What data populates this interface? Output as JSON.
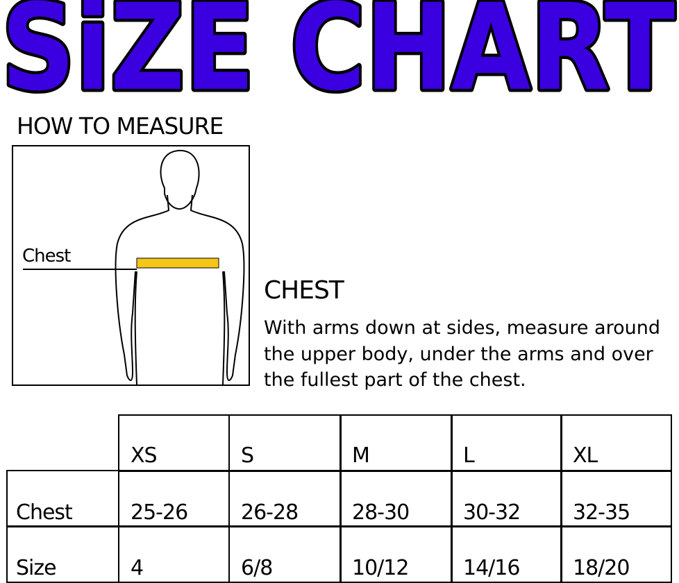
{
  "title": "SiZE CHART",
  "title_color": "#3b00e0",
  "how_to_measure": "HOW TO MEASURE",
  "figure": {
    "chest_label": "Chest",
    "tape_color": "#f5c518"
  },
  "chest_section": {
    "heading": "CHEST",
    "description": "With arms down at sides, measure around the upper body, under the arms and over the fullest part of the chest."
  },
  "table": {
    "sizes": [
      "XS",
      "S",
      "M",
      "L",
      "XL"
    ],
    "rows": [
      {
        "label": "Chest",
        "values": [
          "25-26",
          "26-28",
          "28-30",
          "30-32",
          "32-35"
        ]
      },
      {
        "label": "Size",
        "values": [
          "4",
          "6/8",
          "10/12",
          "14/16",
          "18/20"
        ]
      }
    ]
  }
}
